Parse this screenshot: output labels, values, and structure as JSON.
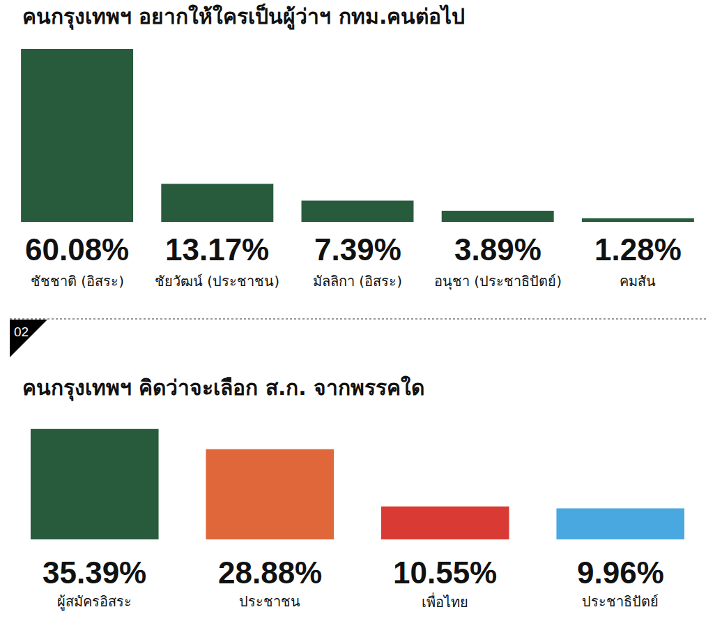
{
  "chart_data": [
    {
      "type": "bar",
      "title": "คนกรุงเทพฯ อยากให้ใครเป็นผู้ว่าฯ กทม.คนต่อไป",
      "categories": [
        "ชัชชาติ (อิสระ)",
        "ชัยวัฒน์ (ประชาชน)",
        "มัลลิกา (อิสระ)",
        "อนุชา (ประชาธิปัตย์)",
        "คมสัน"
      ],
      "values": [
        60.08,
        13.17,
        7.39,
        3.89,
        1.28
      ],
      "value_labels": [
        "60.08%",
        "13.17%",
        "7.39%",
        "3.89%",
        "1.28%"
      ],
      "color": "#285b3c",
      "ylim": [
        0,
        62
      ],
      "grid": false,
      "data_labels": true,
      "tick_labels": false
    },
    {
      "type": "bar",
      "title": "คนกรุงเทพฯ คิดว่าจะเลือก ส.ก. จากพรรคใด",
      "annotation": "02",
      "categories": [
        "ผู้สมัครอิสระ",
        "ประชาชน",
        "เพื่อไทย",
        "ประชาธิปัตย์"
      ],
      "values": [
        35.39,
        28.88,
        10.55,
        9.96
      ],
      "value_labels": [
        "35.39%",
        "28.88%",
        "10.55%",
        "9.96%"
      ],
      "colors": [
        "#285b3c",
        "#e0673a",
        "#d93a34",
        "#4aa8e0"
      ],
      "ylim": [
        0,
        36
      ],
      "grid": false,
      "data_labels": true,
      "tick_labels": false
    }
  ]
}
